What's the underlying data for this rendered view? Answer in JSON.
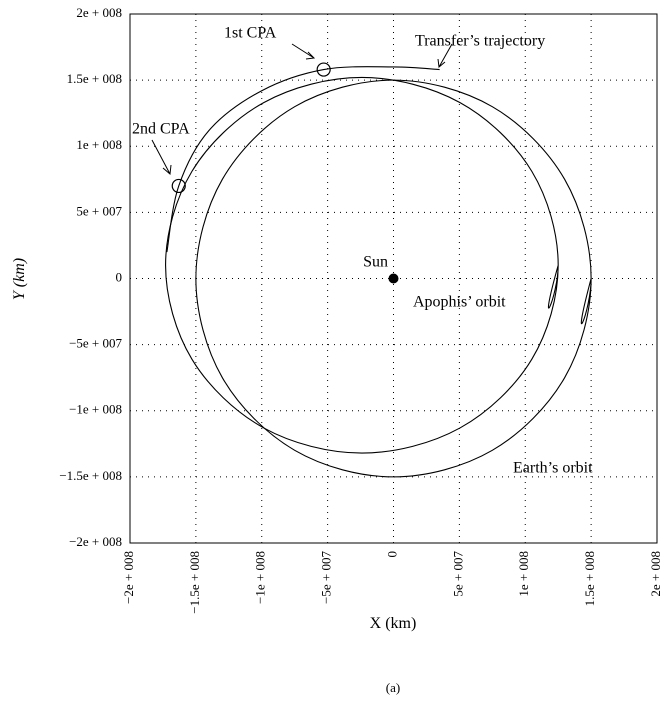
{
  "chart_data": {
    "type": "line",
    "xlabel": "X (km)",
    "ylabel": "Y (km)",
    "caption": "(a)",
    "xlim": [
      -200000000,
      200000000
    ],
    "ylim": [
      -200000000,
      200000000
    ],
    "xticks": [
      {
        "value": -200000000,
        "label": "−2e + 008"
      },
      {
        "value": -150000000,
        "label": "−1.5e + 008"
      },
      {
        "value": -100000000,
        "label": "−1e + 008"
      },
      {
        "value": -50000000,
        "label": "−5e + 007"
      },
      0,
      {
        "value": 50000000,
        "label": "5e + 007"
      },
      {
        "value": 100000000,
        "label": "1e + 008"
      },
      {
        "value": 150000000,
        "label": "1.5e + 008"
      },
      {
        "value": 200000000,
        "label": "2e + 008"
      }
    ],
    "yticks": [
      {
        "value": -200000000,
        "label": "−2e + 008"
      },
      {
        "value": -150000000,
        "label": "−1.5e + 008"
      },
      {
        "value": -100000000,
        "label": "−1e + 008"
      },
      {
        "value": -50000000,
        "label": "−5e + 007"
      },
      0,
      {
        "value": 50000000,
        "label": "5e + 007"
      },
      {
        "value": 100000000,
        "label": "1e + 008"
      },
      {
        "value": 150000000,
        "label": "1.5e + 008"
      },
      {
        "value": 200000000,
        "label": "2e + 008"
      }
    ],
    "grid": true,
    "series": [
      {
        "name": "Earth’s orbit",
        "color": "#000000",
        "x": [
          150000000,
          129900000,
          75000000,
          0,
          -75000000,
          -129900000,
          -150000000,
          -129900000,
          -75000000,
          0,
          75000000,
          129900000,
          150000000
        ],
        "y": [
          0,
          75000000,
          129900000,
          150000000,
          129900000,
          75000000,
          0,
          -75000000,
          -129900000,
          -150000000,
          -129900000,
          -75000000,
          0
        ]
      },
      {
        "name": "Apophis’ orbit",
        "color": "#000000",
        "x": [
          125000000,
          105000000,
          50500000,
          -24000000,
          -98500000,
          -153000000,
          -173000000,
          -153000000,
          -98500000,
          -24000000,
          50500000,
          105000000,
          125000000
        ],
        "y": [
          10000000,
          81000000,
          133000000,
          152000000,
          133000000,
          81000000,
          10000000,
          -61000000,
          -113000000,
          -132000000,
          -113000000,
          -61000000,
          10000000
        ]
      },
      {
        "name": "Transfer’s trajectory",
        "color": "#000000",
        "x": [
          -172000000,
          -163000000,
          -140000000,
          -100000000,
          -53000000,
          0,
          35000000
        ],
        "y": [
          20000000,
          70000000,
          112000000,
          142000000,
          158000000,
          160000000,
          158000000
        ]
      }
    ],
    "points": [
      {
        "name": "Sun",
        "x": 0,
        "y": 0
      }
    ],
    "annotations": [
      {
        "text": "1st CPA",
        "x": -53000000,
        "y": 158000000
      },
      {
        "text": "2nd CPA",
        "x": -163000000,
        "y": 70000000
      }
    ]
  }
}
